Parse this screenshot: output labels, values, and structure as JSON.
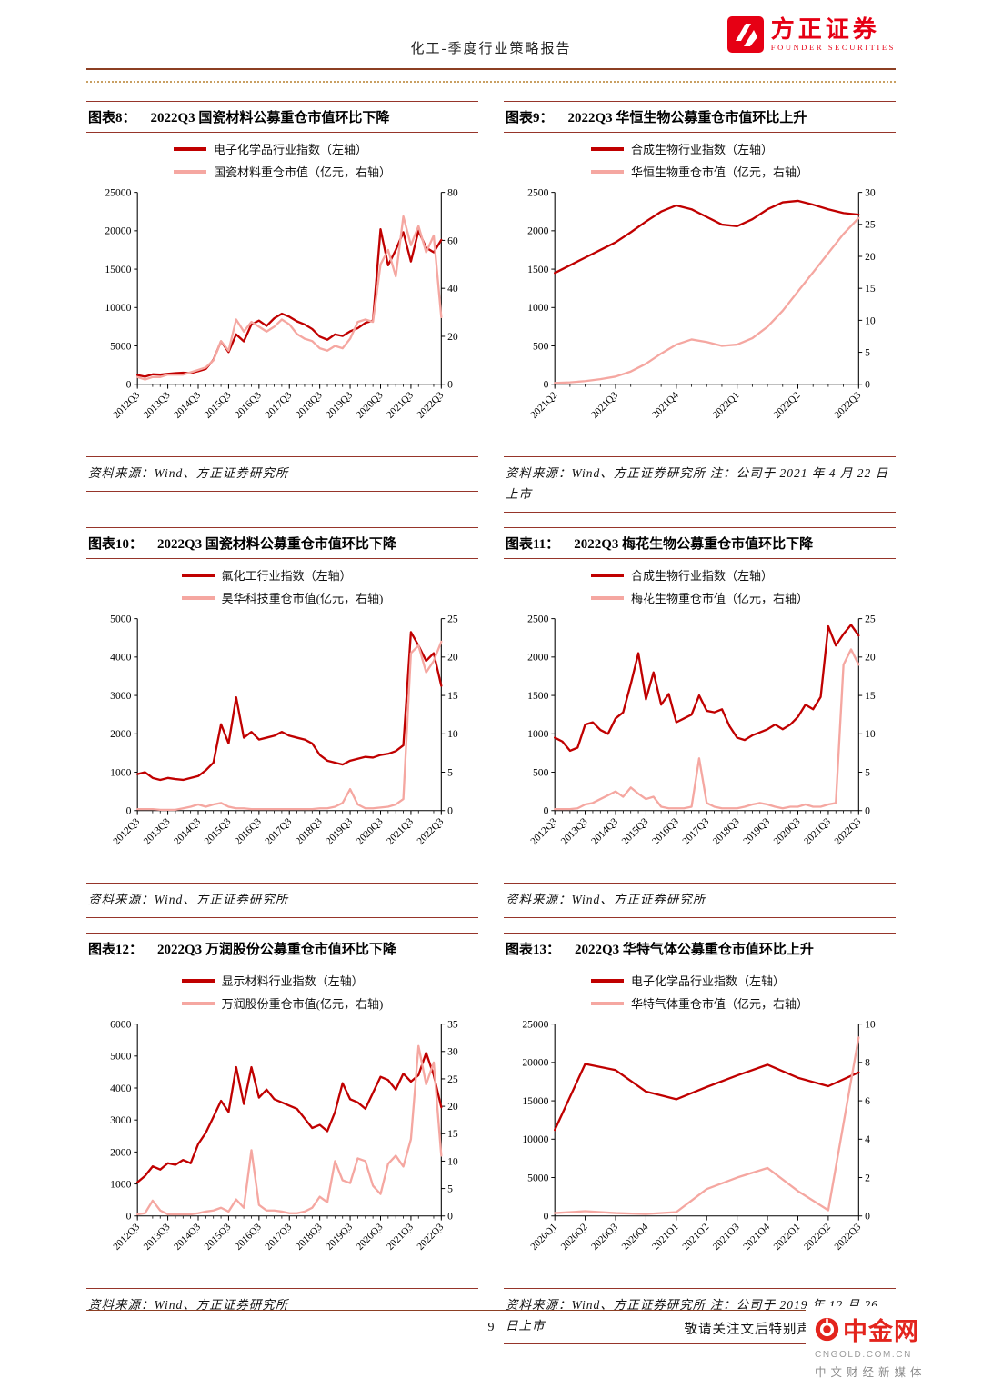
{
  "page": {
    "header": {
      "doc_title": "化工-季度行业策略报告",
      "brand_cn": "方正证券",
      "brand_en": "FOUNDER SECURITIES"
    },
    "footer": {
      "page_number": "9",
      "disclaimer": "敬请关注文后特别声明与免责条款"
    },
    "watermark": {
      "name_cn": "中金网",
      "domain": "CNGOLD.COM.CN",
      "tagline": "中文财经新媒体"
    }
  },
  "colors": {
    "dark_red": "#c00000",
    "pink": "#f5a7a1",
    "brand_red": "#e60014",
    "rule_red": "#96352a",
    "dotted_tan": "#c9a063",
    "watermark_red": "#e3241d"
  },
  "figures": [
    {
      "label": "图表8：",
      "title": "2022Q3 国瓷材料公募重仓市值环比下降",
      "source": "资料来源：Wind、方正证券研究所"
    },
    {
      "label": "图表9：",
      "title": "2022Q3 华恒生物公募重仓市值环比上升",
      "source": "资料来源：Wind、方正证券研究所  注：公司于 2021 年 4 月 22 日上市"
    },
    {
      "label": "图表10：",
      "title": "2022Q3 国瓷材料公募重仓市值环比下降",
      "source": "资料来源：Wind、方正证券研究所"
    },
    {
      "label": "图表11：",
      "title": "2022Q3 梅花生物公募重仓市值环比下降",
      "source": "资料来源：Wind、方正证券研究所"
    },
    {
      "label": "图表12：",
      "title": "2022Q3 万润股份公募重仓市值环比下降",
      "source": "资料来源：Wind、方正证券研究所"
    },
    {
      "label": "图表13：",
      "title": "2022Q3 华特气体公募重仓市值环比上升",
      "source": "资料来源：Wind、方正证券研究所  注：公司于 2019 年 12 月 26 日上市"
    }
  ],
  "chart_data": [
    {
      "type": "line",
      "title": "2022Q3 国瓷材料公募重仓市值环比下降",
      "legend_position": "top",
      "grid": false,
      "x_tick_labels": [
        "2012Q3",
        "2013Q3",
        "2014Q3",
        "2015Q3",
        "2016Q3",
        "2017Q3",
        "2018Q3",
        "2019Q3",
        "2020Q3",
        "2021Q3",
        "2022Q3"
      ],
      "left_ticks": [
        0,
        5000,
        10000,
        15000,
        20000,
        25000
      ],
      "right_ticks": [
        0,
        20,
        40,
        60,
        80
      ],
      "series": [
        {
          "name": "电子化学品行业指数（左轴）",
          "axis": "left",
          "color": "#c00000",
          "values": [
            1200,
            1000,
            1300,
            1250,
            1350,
            1450,
            1500,
            1450,
            1700,
            2000,
            3200,
            5600,
            4200,
            6500,
            5600,
            7800,
            8300,
            7600,
            8600,
            9200,
            8800,
            8200,
            7800,
            7200,
            6200,
            5800,
            6500,
            6300,
            6900,
            7300,
            8000,
            8300,
            20200,
            15500,
            17500,
            19800,
            16000,
            20000,
            17800,
            17200,
            18800
          ]
        },
        {
          "name": "国瓷材料重仓市值（亿元，右轴）",
          "axis": "right",
          "color": "#f5a7a1",
          "values": [
            3,
            2,
            3,
            3,
            4,
            4,
            4,
            5,
            6,
            7,
            10,
            18,
            14,
            27,
            22,
            26,
            24,
            22,
            24,
            27,
            25,
            21,
            19,
            18,
            15,
            14,
            16,
            15,
            19,
            26,
            27,
            26,
            50,
            56,
            45,
            70,
            58,
            66,
            55,
            62,
            28
          ]
        }
      ]
    },
    {
      "type": "line",
      "title": "2022Q3 华恒生物公募重仓市值环比上升",
      "legend_position": "top",
      "grid": false,
      "x_tick_labels": [
        "2021Q2",
        "2021Q3",
        "2021Q4",
        "2022Q1",
        "2022Q2",
        "2022Q3"
      ],
      "left_ticks": [
        0,
        500,
        1000,
        1500,
        2000,
        2500
      ],
      "right_ticks": [
        0,
        5,
        10,
        15,
        20,
        25,
        30
      ],
      "series": [
        {
          "name": "合成生物行业指数（左轴）",
          "axis": "left",
          "color": "#c00000",
          "values": [
            1450,
            1550,
            1650,
            1750,
            1850,
            1980,
            2120,
            2250,
            2330,
            2280,
            2180,
            2080,
            2060,
            2150,
            2280,
            2370,
            2390,
            2340,
            2280,
            2230,
            2210
          ]
        },
        {
          "name": "华恒生物重仓市值（亿元，右轴）",
          "axis": "right",
          "color": "#f5a7a1",
          "values": [
            0.2,
            0.3,
            0.5,
            0.8,
            1.2,
            2.0,
            3.2,
            4.8,
            6.2,
            7.0,
            6.6,
            6.0,
            6.2,
            7.2,
            9.0,
            11.5,
            14.5,
            17.5,
            20.5,
            23.5,
            26.0
          ]
        }
      ]
    },
    {
      "type": "line",
      "title": "2022Q3 国瓷材料公募重仓市值环比下降",
      "legend_position": "top",
      "grid": false,
      "x_tick_labels": [
        "2012Q3",
        "2013Q3",
        "2014Q3",
        "2015Q3",
        "2016Q3",
        "2017Q3",
        "2018Q3",
        "2019Q3",
        "2020Q3",
        "2021Q3",
        "2022Q3"
      ],
      "left_ticks": [
        0,
        1000,
        2000,
        3000,
        4000,
        5000
      ],
      "right_ticks": [
        0,
        5,
        10,
        15,
        20,
        25
      ],
      "series": [
        {
          "name": "氟化工行业指数（左轴）",
          "axis": "left",
          "color": "#c00000",
          "values": [
            950,
            1000,
            850,
            800,
            850,
            820,
            800,
            850,
            900,
            1050,
            1250,
            2250,
            1750,
            2950,
            1900,
            2050,
            1850,
            1900,
            1950,
            2050,
            1950,
            1900,
            1850,
            1750,
            1450,
            1300,
            1250,
            1200,
            1300,
            1350,
            1400,
            1380,
            1450,
            1480,
            1550,
            1700,
            4650,
            4300,
            3900,
            4100,
            3250
          ]
        },
        {
          "name": "昊华科技重仓市值(亿元，右轴)",
          "axis": "right",
          "color": "#f5a7a1",
          "values": [
            0.2,
            0.2,
            0.2,
            0.1,
            0.1,
            0.1,
            0.3,
            0.5,
            0.8,
            0.5,
            0.8,
            1.0,
            0.5,
            0.3,
            0.3,
            0.2,
            0.2,
            0.2,
            0.2,
            0.2,
            0.2,
            0.2,
            0.2,
            0.2,
            0.3,
            0.3,
            0.5,
            1.0,
            2.8,
            0.8,
            0.3,
            0.3,
            0.4,
            0.5,
            0.8,
            1.5,
            20.5,
            21.5,
            18.0,
            19.5,
            22.0
          ]
        }
      ]
    },
    {
      "type": "line",
      "title": "2022Q3 梅花生物公募重仓市值环比下降",
      "legend_position": "top",
      "grid": false,
      "x_tick_labels": [
        "2012Q3",
        "2013Q3",
        "2014Q3",
        "2015Q3",
        "2016Q3",
        "2017Q3",
        "2018Q3",
        "2019Q3",
        "2020Q3",
        "2021Q3",
        "2022Q3"
      ],
      "left_ticks": [
        0,
        500,
        1000,
        1500,
        2000,
        2500
      ],
      "right_ticks": [
        0,
        5,
        10,
        15,
        20,
        25
      ],
      "series": [
        {
          "name": "合成生物行业指数（左轴）",
          "axis": "left",
          "color": "#c00000",
          "values": [
            950,
            900,
            780,
            820,
            1120,
            1150,
            1050,
            1000,
            1200,
            1280,
            1650,
            2050,
            1450,
            1800,
            1380,
            1520,
            1150,
            1200,
            1250,
            1500,
            1300,
            1280,
            1320,
            1100,
            950,
            920,
            980,
            1020,
            1060,
            1120,
            1060,
            1120,
            1220,
            1380,
            1320,
            1480,
            2400,
            2150,
            2300,
            2420,
            2280
          ]
        },
        {
          "name": "梅花生物重仓市值（亿元，右轴）",
          "axis": "right",
          "color": "#f5a7a1",
          "values": [
            0.2,
            0.2,
            0.2,
            0.3,
            0.8,
            1.0,
            1.5,
            2.0,
            2.5,
            1.8,
            3.0,
            2.2,
            1.5,
            1.8,
            0.5,
            0.3,
            0.3,
            0.3,
            0.5,
            6.8,
            1.0,
            0.5,
            0.3,
            0.3,
            0.3,
            0.5,
            0.8,
            1.0,
            0.8,
            0.5,
            0.3,
            0.5,
            0.5,
            0.8,
            0.5,
            0.5,
            0.8,
            1.0,
            19.0,
            21.0,
            19.0
          ]
        }
      ]
    },
    {
      "type": "line",
      "title": "2022Q3 万润股份公募重仓市值环比下降",
      "legend_position": "top",
      "grid": false,
      "x_tick_labels": [
        "2012Q3",
        "2013Q3",
        "2014Q3",
        "2015Q3",
        "2016Q3",
        "2017Q3",
        "2018Q3",
        "2019Q3",
        "2020Q3",
        "2021Q3",
        "2022Q3"
      ],
      "left_ticks": [
        0,
        1000,
        2000,
        3000,
        4000,
        5000,
        6000
      ],
      "right_ticks": [
        0,
        5,
        10,
        15,
        20,
        25,
        30,
        35
      ],
      "series": [
        {
          "name": "显示材料行业指数（左轴）",
          "axis": "left",
          "color": "#c00000",
          "values": [
            1050,
            1250,
            1550,
            1450,
            1650,
            1600,
            1750,
            1650,
            2250,
            2600,
            3100,
            3600,
            3250,
            4650,
            3500,
            4650,
            3700,
            3950,
            3650,
            3550,
            3450,
            3350,
            3050,
            2750,
            2850,
            2650,
            3250,
            4150,
            3650,
            3550,
            3350,
            3850,
            4350,
            4250,
            3950,
            4450,
            4200,
            4400,
            5100,
            4400,
            3400
          ]
        },
        {
          "name": "万润股份重仓市值(亿元，右轴)",
          "axis": "right",
          "color": "#f5a7a1",
          "values": [
            0.3,
            0.5,
            2.8,
            1.0,
            0.3,
            0.3,
            0.3,
            0.3,
            0.5,
            0.8,
            1.0,
            1.5,
            0.8,
            3.0,
            1.5,
            12.0,
            2.0,
            1.0,
            1.0,
            0.8,
            0.5,
            0.5,
            0.8,
            1.5,
            3.5,
            2.5,
            10.0,
            6.5,
            6.0,
            10.5,
            10.0,
            5.5,
            4.0,
            9.5,
            11.0,
            9.0,
            14.0,
            31.0,
            24.0,
            28.0,
            11.0
          ]
        }
      ]
    },
    {
      "type": "line",
      "title": "2022Q3 华特气体公募重仓市值环比上升",
      "legend_position": "top",
      "grid": false,
      "x_tick_labels": [
        "2020Q1",
        "2020Q2",
        "2020Q3",
        "2020Q4",
        "2021Q1",
        "2021Q2",
        "2021Q3",
        "2021Q4",
        "2022Q1",
        "2022Q2",
        "2022Q3"
      ],
      "left_ticks": [
        0,
        5000,
        10000,
        15000,
        20000,
        25000
      ],
      "right_ticks": [
        0,
        2,
        4,
        6,
        8,
        10
      ],
      "series": [
        {
          "name": "电子化学品行业指数（左轴）",
          "axis": "left",
          "color": "#c00000",
          "values": [
            11200,
            19800,
            19000,
            16200,
            15200,
            16800,
            18300,
            19700,
            18000,
            16900,
            18700
          ]
        },
        {
          "name": "华特气体重仓市值（亿元，右轴）",
          "axis": "right",
          "color": "#f5a7a1",
          "values": [
            0.15,
            0.25,
            0.15,
            0.1,
            0.2,
            1.4,
            2.0,
            2.5,
            1.3,
            0.3,
            9.3
          ]
        }
      ]
    }
  ]
}
